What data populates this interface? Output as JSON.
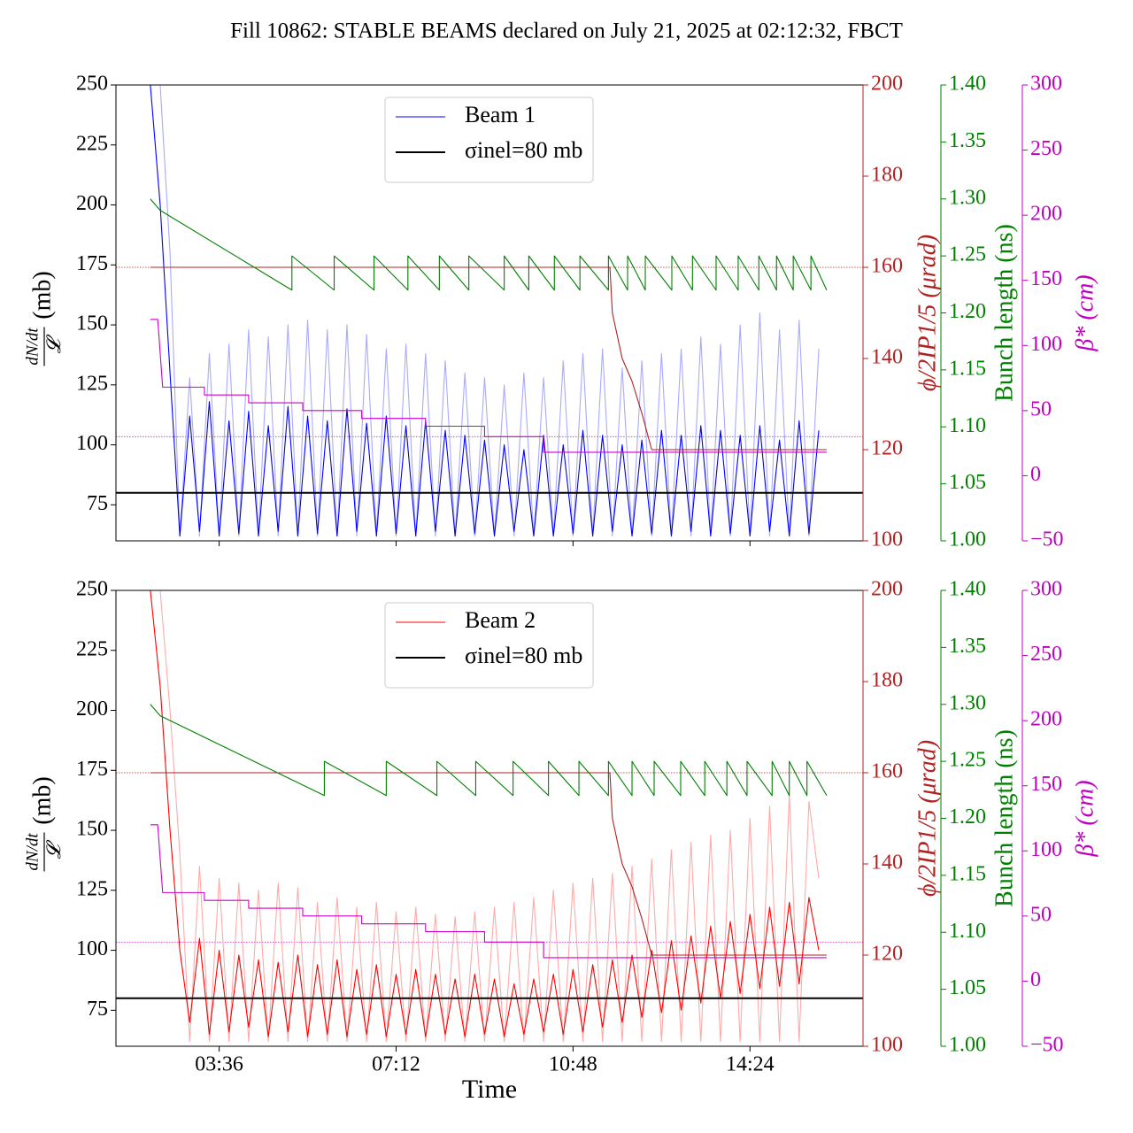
{
  "chart_data": [
    {
      "type": "line",
      "title": "Fill 10862: STABLE BEAMS declared on July 21, 2025 at 02:12:32, FBCT",
      "ylabel_numerator": "dN/dt",
      "ylabel_denominator": "𝓛",
      "ylabel_unit": "(mb)",
      "y2label": "ϕ/2IP1/5 (μrad)",
      "y3label": "Bunch length (ns)",
      "y4label": "β* (cm)",
      "xlim": [
        1.5,
        16.7
      ],
      "xticks": [
        3.6,
        7.2,
        10.8,
        14.4
      ],
      "ylim": [
        60,
        250
      ],
      "yticks": [
        75,
        100,
        125,
        150,
        175,
        200,
        225,
        250
      ],
      "y2lim": [
        100,
        200
      ],
      "y2ticks": [
        100,
        120,
        140,
        160,
        180,
        200
      ],
      "y2color": "#b22222",
      "y3lim": [
        1.0,
        1.4
      ],
      "y3ticks": [
        {
          "value": 1.0,
          "label": "1.00"
        },
        1.05,
        {
          "value": 1.1,
          "label": "1.10"
        },
        1.15,
        {
          "value": 1.2,
          "label": "1.20"
        },
        1.25,
        {
          "value": 1.3,
          "label": "1.30"
        },
        1.35,
        {
          "value": 1.4,
          "label": "1.40"
        }
      ],
      "y3color": "#008000",
      "y4lim": [
        -50,
        300
      ],
      "y4ticks": [
        {
          "value": -50,
          "label": "−50"
        },
        0,
        50,
        100,
        150,
        200,
        250,
        300
      ],
      "y4color": "#c000c0",
      "legend": "upper center",
      "ref_lines": [
        {
          "axis": "y2",
          "value": 160,
          "color": "#b22222"
        },
        {
          "axis": "y4",
          "value": 30,
          "color": "#cc00cc"
        }
      ],
      "series": [
        {
          "color": "#aaaaff",
          "axis": "y",
          "x": [
            2.2,
            2.4,
            2.6,
            2.8,
            3.0,
            3.2,
            3.4,
            3.6,
            3.8,
            4.0,
            4.2,
            4.4,
            4.6,
            4.8,
            5.0,
            5.2,
            5.4,
            5.6,
            5.8,
            6.0,
            6.2,
            6.4,
            6.6,
            6.8,
            7.0,
            7.2,
            7.4,
            7.6,
            7.8,
            8.0,
            8.2,
            8.4,
            8.6,
            8.8,
            9.0,
            9.2,
            9.4,
            9.6,
            9.8,
            10.0,
            10.2,
            10.4,
            10.6,
            10.8,
            11.0,
            11.2,
            11.4,
            11.6,
            11.8,
            12.0,
            12.2,
            12.4,
            12.6,
            12.8,
            13.0,
            13.2,
            13.4,
            13.6,
            13.8,
            14.0,
            14.2,
            14.4,
            14.6,
            14.8,
            15.0,
            15.2,
            15.4,
            15.6,
            15.8
          ],
          "values": [
            250,
            250,
            180,
            62,
            128,
            62,
            138,
            62,
            142,
            62,
            148,
            62,
            145,
            62,
            150,
            62,
            152,
            62,
            148,
            62,
            150,
            62,
            146,
            62,
            140,
            62,
            142,
            62,
            138,
            62,
            135,
            62,
            130,
            62,
            128,
            62,
            125,
            62,
            130,
            62,
            128,
            62,
            135,
            62,
            138,
            62,
            140,
            62,
            132,
            62,
            135,
            62,
            138,
            62,
            140,
            62,
            145,
            62,
            142,
            62,
            150,
            62,
            155,
            62,
            148,
            62,
            152,
            62,
            140
          ]
        },
        {
          "name": "Beam 1",
          "color": "#0000ff",
          "axis": "y",
          "x": [
            2.2,
            2.4,
            2.6,
            2.8,
            3.0,
            3.2,
            3.4,
            3.6,
            3.8,
            4.0,
            4.2,
            4.4,
            4.6,
            4.8,
            5.0,
            5.2,
            5.4,
            5.6,
            5.8,
            6.0,
            6.2,
            6.4,
            6.6,
            6.8,
            7.0,
            7.2,
            7.4,
            7.6,
            7.8,
            8.0,
            8.2,
            8.4,
            8.6,
            8.8,
            9.0,
            9.2,
            9.4,
            9.6,
            9.8,
            10.0,
            10.2,
            10.4,
            10.6,
            10.8,
            11.0,
            11.2,
            11.4,
            11.6,
            11.8,
            12.0,
            12.2,
            12.4,
            12.6,
            12.8,
            13.0,
            13.2,
            13.4,
            13.6,
            13.8,
            14.0,
            14.2,
            14.4,
            14.6,
            14.8,
            15.0,
            15.2,
            15.4,
            15.6,
            15.8
          ],
          "values": [
            250,
            200,
            130,
            62,
            112,
            64,
            118,
            62,
            110,
            63,
            114,
            62,
            108,
            64,
            116,
            62,
            112,
            63,
            110,
            62,
            115,
            64,
            109,
            62,
            112,
            63,
            108,
            62,
            110,
            64,
            106,
            62,
            104,
            63,
            102,
            62,
            100,
            64,
            98,
            62,
            104,
            62,
            100,
            63,
            106,
            62,
            104,
            64,
            100,
            62,
            102,
            63,
            106,
            62,
            104,
            64,
            108,
            62,
            106,
            63,
            104,
            62,
            108,
            64,
            102,
            62,
            110,
            63,
            106
          ]
        },
        {
          "name": "σinel=80 mb",
          "color": "#000000",
          "axis": "y",
          "width": 2,
          "x": [
            1.5,
            16.7
          ],
          "values": [
            80,
            80
          ]
        },
        {
          "color": "#b22222",
          "axis": "y2",
          "x": [
            2.2,
            11.55,
            11.6,
            11.8,
            12.0,
            12.2,
            12.4,
            15.96
          ],
          "values": [
            160,
            160,
            150,
            140,
            135,
            128,
            120,
            120
          ]
        },
        {
          "color": "#cc00cc",
          "axis": "y4",
          "x": [
            2.2,
            2.35,
            2.45,
            3.3,
            3.3,
            4.2,
            4.2,
            5.3,
            5.3,
            6.5,
            6.5,
            7.8,
            7.8,
            9.0,
            9.0,
            10.2,
            10.2,
            15.96
          ],
          "values": [
            120,
            120,
            68,
            68,
            62,
            62,
            56,
            56,
            50,
            50,
            44,
            44,
            38,
            38,
            30,
            30,
            18,
            18
          ]
        },
        {
          "color": "#008000",
          "axis": "y3",
          "x": [
            2.2,
            2.4,
            5.08,
            5.08,
            5.94,
            5.94,
            6.75,
            6.75,
            7.44,
            7.44,
            8.08,
            8.08,
            8.68,
            8.68,
            9.4,
            9.4,
            9.9,
            9.9,
            10.42,
            10.42,
            10.94,
            10.94,
            11.52,
            11.52,
            11.91,
            11.91,
            12.27,
            12.27,
            12.81,
            12.81,
            13.23,
            13.23,
            13.71,
            13.71,
            14.16,
            14.16,
            14.58,
            14.58,
            14.94,
            14.94,
            15.28,
            15.28,
            15.64,
            15.64,
            15.96
          ],
          "values": [
            1.3,
            1.29,
            1.22,
            1.25,
            1.22,
            1.25,
            1.22,
            1.25,
            1.22,
            1.25,
            1.22,
            1.25,
            1.22,
            1.25,
            1.22,
            1.25,
            1.22,
            1.25,
            1.22,
            1.25,
            1.22,
            1.25,
            1.22,
            1.25,
            1.22,
            1.25,
            1.22,
            1.25,
            1.22,
            1.25,
            1.22,
            1.25,
            1.22,
            1.25,
            1.22,
            1.25,
            1.22,
            1.25,
            1.22,
            1.25,
            1.22,
            1.25,
            1.22,
            1.25,
            1.22
          ]
        }
      ]
    },
    {
      "type": "line",
      "xlabel": "Time",
      "ylabel_numerator": "dN/dt",
      "ylabel_denominator": "𝓛",
      "ylabel_unit": "(mb)",
      "y2label": "ϕ/2IP1/5 (μrad)",
      "y3label": "Bunch length (ns)",
      "y4label": "β* (cm)",
      "xlim": [
        1.5,
        16.7
      ],
      "xticks": [
        {
          "value": 3.6,
          "label": "03:36"
        },
        {
          "value": 7.2,
          "label": "07:12"
        },
        {
          "value": 10.8,
          "label": "10:48"
        },
        {
          "value": 14.4,
          "label": "14:24"
        }
      ],
      "ylim": [
        60,
        250
      ],
      "yticks": [
        75,
        100,
        125,
        150,
        175,
        200,
        225,
        250
      ],
      "y2lim": [
        100,
        200
      ],
      "y2ticks": [
        100,
        120,
        140,
        160,
        180,
        200
      ],
      "y2color": "#b22222",
      "y3lim": [
        1.0,
        1.4
      ],
      "y3ticks": [
        {
          "value": 1.0,
          "label": "1.00"
        },
        1.05,
        {
          "value": 1.1,
          "label": "1.10"
        },
        1.15,
        {
          "value": 1.2,
          "label": "1.20"
        },
        1.25,
        {
          "value": 1.3,
          "label": "1.30"
        },
        1.35,
        {
          "value": 1.4,
          "label": "1.40"
        }
      ],
      "y3color": "#008000",
      "y4lim": [
        -50,
        300
      ],
      "y4ticks": [
        {
          "value": -50,
          "label": "−50"
        },
        0,
        50,
        100,
        150,
        200,
        250,
        300
      ],
      "y4color": "#c000c0",
      "legend": "upper center",
      "ref_lines": [
        {
          "axis": "y2",
          "value": 160,
          "color": "#b22222"
        },
        {
          "axis": "y4",
          "value": 30,
          "color": "#cc00cc"
        }
      ],
      "series": [
        {
          "color": "#ffaaaa",
          "axis": "y",
          "x": [
            2.2,
            2.4,
            2.6,
            2.8,
            3.0,
            3.2,
            3.4,
            3.6,
            3.8,
            4.0,
            4.2,
            4.4,
            4.6,
            4.8,
            5.0,
            5.2,
            5.4,
            5.6,
            5.8,
            6.0,
            6.2,
            6.4,
            6.6,
            6.8,
            7.0,
            7.2,
            7.4,
            7.6,
            7.8,
            8.0,
            8.2,
            8.4,
            8.6,
            8.8,
            9.0,
            9.2,
            9.4,
            9.6,
            9.8,
            10.0,
            10.2,
            10.4,
            10.6,
            10.8,
            11.0,
            11.2,
            11.4,
            11.6,
            11.8,
            12.0,
            12.2,
            12.4,
            12.6,
            12.8,
            13.0,
            13.2,
            13.4,
            13.6,
            13.8,
            14.0,
            14.2,
            14.4,
            14.6,
            14.8,
            15.0,
            15.2,
            15.4,
            15.6,
            15.8
          ],
          "values": [
            250,
            250,
            200,
            140,
            62,
            135,
            62,
            130,
            62,
            128,
            62,
            125,
            62,
            128,
            62,
            126,
            62,
            120,
            62,
            122,
            62,
            118,
            62,
            120,
            62,
            116,
            62,
            118,
            62,
            115,
            62,
            114,
            62,
            116,
            62,
            118,
            62,
            120,
            62,
            122,
            62,
            125,
            62,
            128,
            62,
            130,
            62,
            132,
            62,
            135,
            62,
            138,
            62,
            142,
            62,
            145,
            62,
            148,
            62,
            150,
            62,
            155,
            62,
            160,
            62,
            165,
            62,
            162,
            130
          ]
        },
        {
          "name": "Beam 2",
          "color": "#ff0000",
          "axis": "y",
          "x": [
            2.2,
            2.4,
            2.6,
            2.8,
            3.0,
            3.2,
            3.4,
            3.6,
            3.8,
            4.0,
            4.2,
            4.4,
            4.6,
            4.8,
            5.0,
            5.2,
            5.4,
            5.6,
            5.8,
            6.0,
            6.2,
            6.4,
            6.6,
            6.8,
            7.0,
            7.2,
            7.4,
            7.6,
            7.8,
            8.0,
            8.2,
            8.4,
            8.6,
            8.8,
            9.0,
            9.2,
            9.4,
            9.6,
            9.8,
            10.0,
            10.2,
            10.4,
            10.6,
            10.8,
            11.0,
            11.2,
            11.4,
            11.6,
            11.8,
            12.0,
            12.2,
            12.4,
            12.6,
            12.8,
            13.0,
            13.2,
            13.4,
            13.6,
            13.8,
            14.0,
            14.2,
            14.4,
            14.6,
            14.8,
            15.0,
            15.2,
            15.4,
            15.6,
            15.8
          ],
          "values": [
            250,
            210,
            150,
            100,
            70,
            105,
            65,
            100,
            66,
            98,
            68,
            96,
            64,
            95,
            66,
            98,
            64,
            94,
            65,
            96,
            64,
            92,
            65,
            94,
            64,
            90,
            65,
            92,
            64,
            90,
            65,
            88,
            64,
            90,
            65,
            88,
            64,
            86,
            65,
            88,
            66,
            90,
            65,
            92,
            66,
            94,
            68,
            96,
            70,
            98,
            72,
            100,
            74,
            104,
            75,
            106,
            78,
            110,
            80,
            112,
            82,
            115,
            84,
            118,
            85,
            120,
            86,
            122,
            100
          ]
        },
        {
          "name": "σinel=80 mb",
          "color": "#000000",
          "axis": "y",
          "width": 2,
          "x": [
            1.5,
            16.7
          ],
          "values": [
            80,
            80
          ]
        },
        {
          "color": "#b22222",
          "axis": "y2",
          "x": [
            2.2,
            11.55,
            11.6,
            11.8,
            12.0,
            12.2,
            12.4,
            15.96
          ],
          "values": [
            160,
            160,
            150,
            140,
            135,
            128,
            120,
            120
          ]
        },
        {
          "color": "#cc00cc",
          "axis": "y4",
          "x": [
            2.2,
            2.35,
            2.45,
            3.3,
            3.3,
            4.2,
            4.2,
            5.3,
            5.3,
            6.5,
            6.5,
            7.8,
            7.8,
            9.0,
            9.0,
            10.2,
            10.2,
            15.96
          ],
          "values": [
            120,
            120,
            68,
            68,
            62,
            62,
            56,
            56,
            50,
            50,
            44,
            44,
            38,
            38,
            30,
            30,
            18,
            18
          ]
        },
        {
          "color": "#008000",
          "axis": "y3",
          "x": [
            2.2,
            2.4,
            5.74,
            5.74,
            7.0,
            7.0,
            8.03,
            8.03,
            8.82,
            8.82,
            9.58,
            9.58,
            10.3,
            10.3,
            10.92,
            10.92,
            11.52,
            11.52,
            12.0,
            12.0,
            12.45,
            12.45,
            12.99,
            12.99,
            13.48,
            13.48,
            13.93,
            13.93,
            14.34,
            14.34,
            14.85,
            14.85,
            15.2,
            15.2,
            15.56,
            15.56,
            15.96
          ],
          "values": [
            1.3,
            1.29,
            1.22,
            1.25,
            1.22,
            1.25,
            1.22,
            1.25,
            1.22,
            1.25,
            1.22,
            1.25,
            1.22,
            1.25,
            1.22,
            1.25,
            1.22,
            1.25,
            1.22,
            1.25,
            1.22,
            1.25,
            1.22,
            1.25,
            1.22,
            1.25,
            1.22,
            1.25,
            1.22,
            1.25,
            1.22,
            1.25,
            1.22,
            1.25,
            1.22,
            1.25,
            1.22
          ]
        }
      ]
    }
  ]
}
